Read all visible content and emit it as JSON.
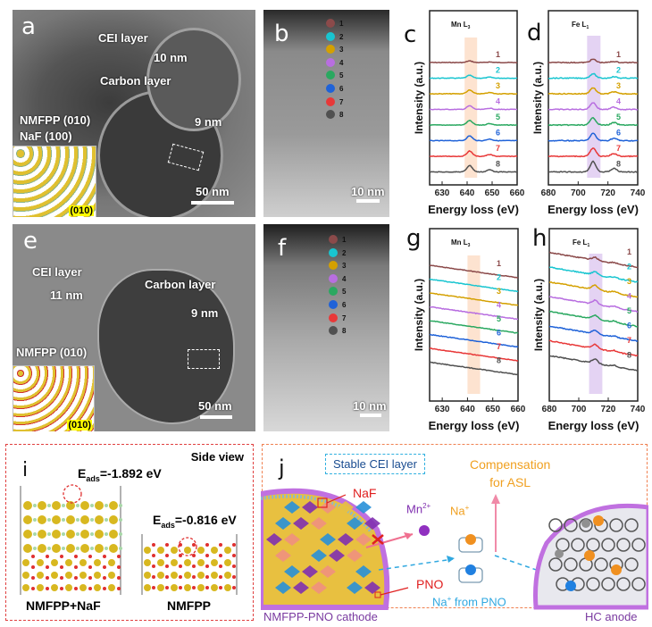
{
  "figure": {
    "panels": {
      "a": {
        "letter": "a",
        "labels": {
          "cei": "CEI layer",
          "cei_thickness": "10 nm",
          "carbon": "Carbon layer",
          "carbon_thickness": "9 nm",
          "phase1": "NMFPP (010)",
          "phase2": "NaF (100)"
        },
        "scale_bar": "50 nm",
        "inset_facet": "(010)"
      },
      "b": {
        "letter": "b",
        "scale_bar": "10 nm",
        "points": [
          "1",
          "2",
          "3",
          "4",
          "5",
          "6",
          "7",
          "8"
        ]
      },
      "e": {
        "letter": "e",
        "labels": {
          "cei": "CEI layer",
          "cei_thickness": "11 nm",
          "carbon": "Carbon layer",
          "carbon_thickness": "9 nm",
          "phase1": "NMFPP (010)"
        },
        "scale_bar": "50 nm",
        "inset_facet": "(010)"
      },
      "f": {
        "letter": "f",
        "scale_bar": "10 nm",
        "points": [
          "1",
          "2",
          "3",
          "4",
          "5",
          "6",
          "7",
          "8"
        ]
      },
      "i": {
        "letter": "i",
        "view": "Side view",
        "eads1": "E",
        "eads1_sub": "ads",
        "eads1_val": "=-1.892 eV",
        "eads2": "E",
        "eads2_sub": "ads",
        "eads2_val": "=-0.816 eV",
        "model1": "NMFPP+NaF",
        "model2": "NMFPP"
      },
      "j": {
        "letter": "j",
        "stable_cei": "Stable CEI layer",
        "naf": "NaF",
        "pno": "PNO",
        "mn": "Mn",
        "mn_sup": "2+",
        "na": "Na",
        "na_sup": "+",
        "compensation_line1": "Compensation",
        "compensation_line2": "for ASL",
        "na_from_pno": "Na",
        "na_from_pno_sup": "+",
        "na_from_pno_rest": " from PNO",
        "cathode": "NMFPP-PNO cathode",
        "anode": "HC anode"
      }
    },
    "point_colors": [
      "#8b4a4a",
      "#19c5d0",
      "#d4a000",
      "#b86ee0",
      "#2aa860",
      "#1f62d8",
      "#e83838",
      "#505050"
    ]
  },
  "chart_data": [
    {
      "panel": "c",
      "type": "line",
      "title": "Mn L3",
      "edge": "Mn L",
      "edge_sub": "3",
      "xlabel": "Energy loss (eV)",
      "ylabel": "Intensity (a.u.)",
      "xlim": [
        625,
        660
      ],
      "xticks": [
        630,
        640,
        650,
        660
      ],
      "highlight": [
        639,
        644
      ],
      "highlight_color": "#fde3d0",
      "series_labels": [
        "1",
        "2",
        "3",
        "4",
        "5",
        "6",
        "7",
        "8"
      ],
      "peak_center": 641,
      "peak_heights": [
        0.2,
        0.35,
        0.45,
        0.45,
        0.55,
        0.6,
        0.65,
        0.8
      ],
      "secondary_peak": 649,
      "slope": 0,
      "noise": 0.05
    },
    {
      "panel": "d",
      "type": "line",
      "title": "Fe L1",
      "edge": "Fe L",
      "edge_sub": "1",
      "xlabel": "Energy loss (eV)",
      "ylabel": "Intensity (a.u.)",
      "xlim": [
        680,
        740
      ],
      "xticks": [
        680,
        700,
        720,
        740
      ],
      "highlight": [
        706,
        715
      ],
      "highlight_color": "#e4d3f3",
      "series_labels": [
        "1",
        "2",
        "3",
        "4",
        "5",
        "6",
        "7",
        "8"
      ],
      "peak_center": 710,
      "peak_heights": [
        0.4,
        0.55,
        0.75,
        0.85,
        0.9,
        0.9,
        1.0,
        1.3
      ],
      "secondary_peak": 724,
      "slope": 0,
      "noise": 0.08
    },
    {
      "panel": "g",
      "type": "line",
      "title": "Mn L3",
      "edge": "Mn L",
      "edge_sub": "3",
      "xlabel": "Energy loss (eV)",
      "ylabel": "Intensity (a.u.)",
      "xlim": [
        625,
        660
      ],
      "xticks": [
        630,
        640,
        650,
        660
      ],
      "highlight": [
        640,
        645
      ],
      "highlight_color": "#fde3d0",
      "series_labels": [
        "1",
        "2",
        "3",
        "4",
        "5",
        "6",
        "7",
        "8"
      ],
      "peak_center": 642,
      "peak_heights": [
        0,
        0,
        0,
        0,
        0,
        0,
        0,
        0
      ],
      "secondary_peak": 650,
      "slope": 1.0,
      "noise": 0.06
    },
    {
      "panel": "h",
      "type": "line",
      "title": "Fe L1",
      "edge": "Fe L",
      "edge_sub": "1",
      "xlabel": "Energy loss (eV)",
      "ylabel": "Intensity (a.u.)",
      "xlim": [
        680,
        740
      ],
      "xticks": [
        680,
        700,
        720,
        740
      ],
      "highlight": [
        707,
        716
      ],
      "highlight_color": "#e4d3f3",
      "series_labels": [
        "1",
        "2",
        "3",
        "4",
        "5",
        "6",
        "7",
        "8"
      ],
      "peak_center": 711,
      "peak_heights": [
        0.35,
        0.4,
        0.55,
        0.5,
        0.5,
        0.45,
        0.5,
        0.5
      ],
      "secondary_peak": 724,
      "slope": 1.2,
      "noise": 0.09
    }
  ]
}
